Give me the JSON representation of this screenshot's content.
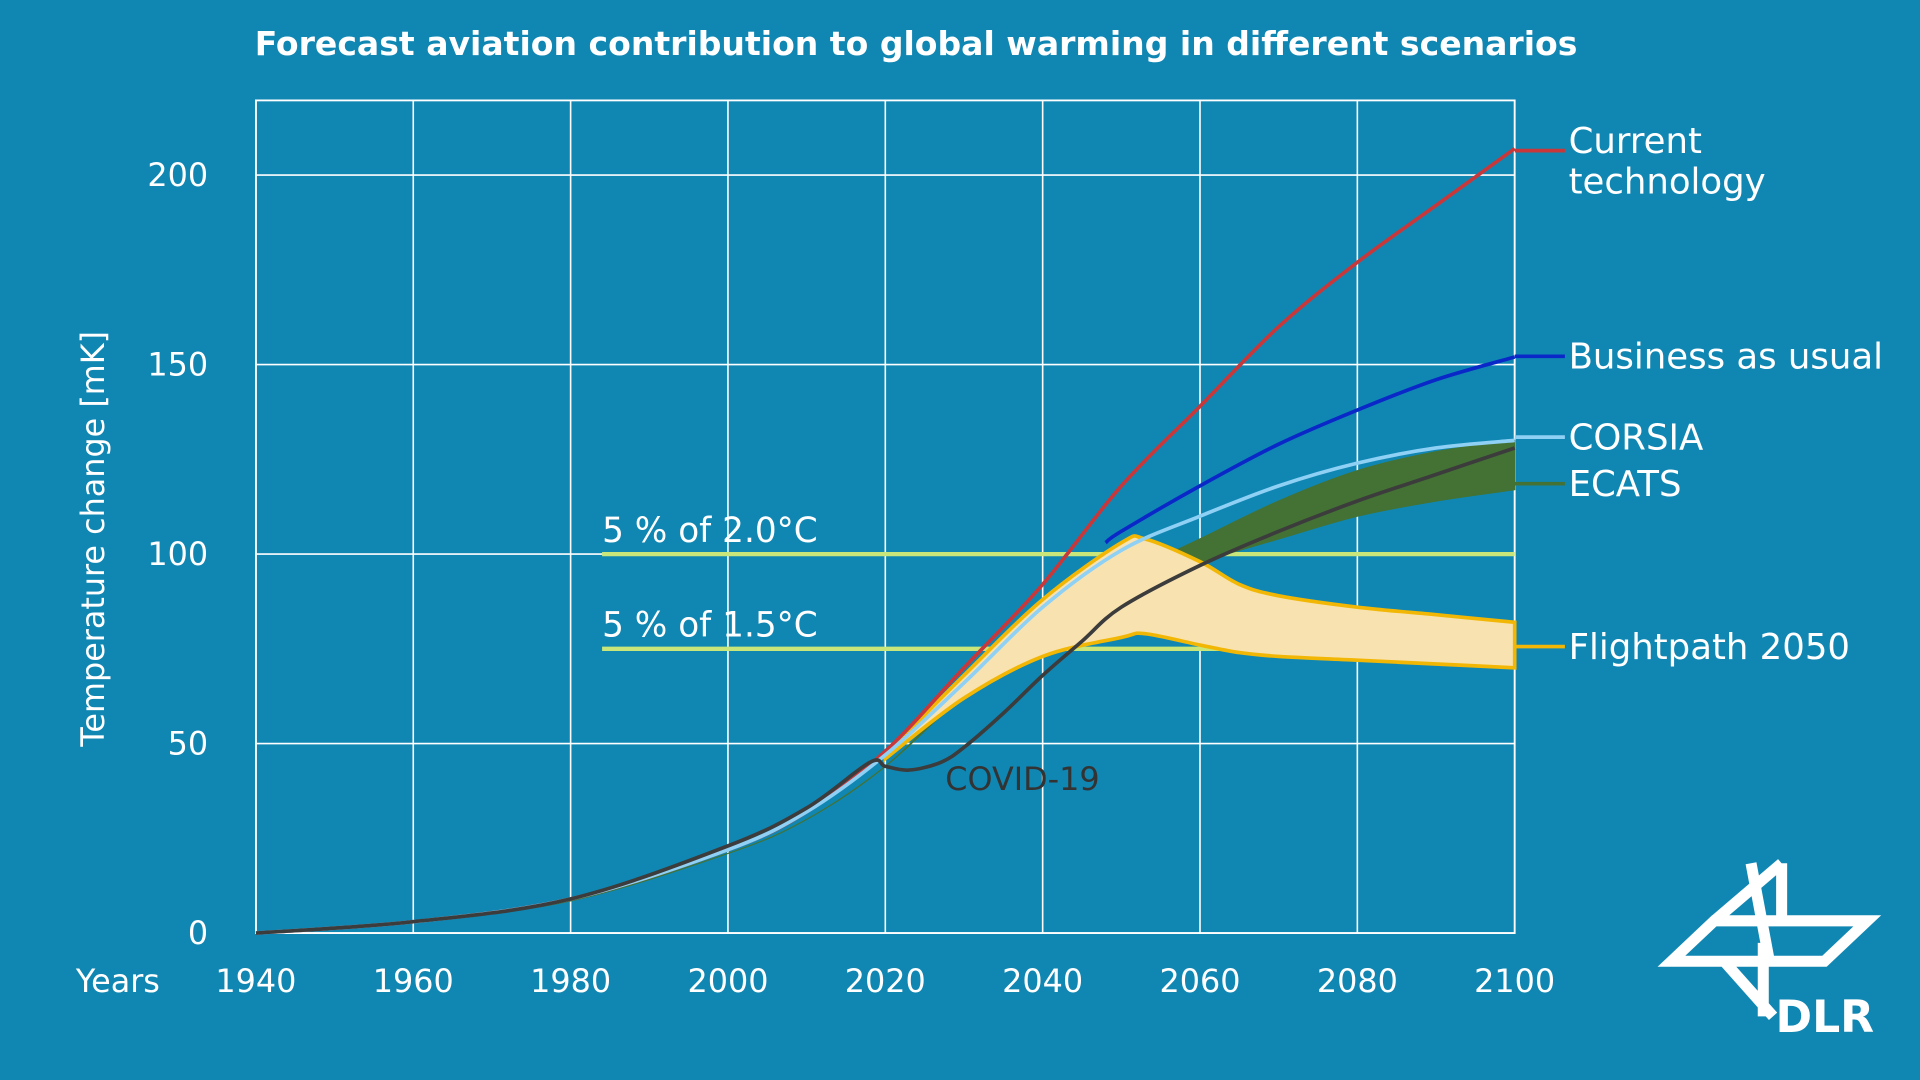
{
  "colors": {
    "background": "#1087b3",
    "grid": "#ffffff",
    "reference": "#c8e67a"
  },
  "chart_data": {
    "type": "line",
    "title": "Forecast aviation contribution to global warming in different scenarios",
    "xlabel": "Years",
    "ylabel": "Temperature change [mK]",
    "xlim": [
      1940,
      2100
    ],
    "ylim": [
      0,
      220
    ],
    "xticks": [
      1940,
      1960,
      1980,
      2000,
      2020,
      2040,
      2060,
      2080,
      2100
    ],
    "yticks": [
      0,
      50,
      100,
      150,
      200
    ],
    "grid": true,
    "legend_placement": "right",
    "reference_lines": [
      {
        "label": "5 % of 2.0°C",
        "y": 100,
        "x_start": 1984
      },
      {
        "label": "5 % of 1.5°C",
        "y": 75,
        "x_start": 1984
      }
    ],
    "annotation": "COVID-19",
    "series": [
      {
        "name": "Current technology",
        "color": "#c8383a",
        "kind": "line",
        "x": [
          1940,
          1960,
          1980,
          2000,
          2010,
          2020,
          2030,
          2040,
          2050,
          2060,
          2070,
          2080,
          2090,
          2100
        ],
        "y": [
          0,
          3,
          9,
          22,
          32,
          48,
          70,
          92,
          118,
          139,
          160,
          177,
          192,
          207
        ]
      },
      {
        "name": "Business as usual",
        "color": "#0a28c8",
        "kind": "line",
        "x": [
          2048,
          2050,
          2060,
          2070,
          2080,
          2090,
          2100
        ],
        "y": [
          103,
          106,
          118,
          129,
          138,
          146,
          152
        ]
      },
      {
        "name": "CORSIA",
        "color": "#8fd0f5",
        "kind": "line",
        "x": [
          1940,
          1960,
          1980,
          2000,
          2010,
          2020,
          2030,
          2040,
          2050,
          2060,
          2070,
          2080,
          2090,
          2100
        ],
        "y": [
          0,
          3,
          9,
          22,
          32,
          47,
          66,
          86,
          101,
          110,
          118,
          124,
          128,
          130
        ]
      },
      {
        "name": "ECATS",
        "color": "#437234",
        "kind": "band",
        "x": [
          1940,
          1960,
          1980,
          2000,
          2010,
          2020,
          2030,
          2040,
          2050,
          2060,
          2070,
          2080,
          2090,
          2100
        ],
        "upper": [
          0,
          3,
          8.5,
          21,
          30,
          44,
          64,
          82,
          94,
          104,
          114,
          122,
          127,
          130
        ],
        "lower": [
          0,
          3,
          8.5,
          21,
          30,
          44,
          63,
          80,
          92,
          98,
          104,
          110,
          114,
          117
        ]
      },
      {
        "name": "Flightpath 2050",
        "color": "#f2b705",
        "fill": "#f8e2b0",
        "kind": "band",
        "x": [
          2020,
          2030,
          2040,
          2050,
          2053,
          2060,
          2065,
          2070,
          2080,
          2090,
          2100
        ],
        "upper": [
          47,
          68,
          88,
          103,
          104,
          98,
          92,
          89,
          86,
          84,
          82
        ],
        "lower": [
          46,
          62,
          73,
          78,
          79,
          76,
          74,
          73,
          72,
          71,
          70
        ]
      },
      {
        "name": "COVID-19",
        "color": "#3c3c3c",
        "kind": "line",
        "x": [
          1940,
          1960,
          1980,
          2000,
          2010,
          2018,
          2020,
          2023,
          2027,
          2030,
          2035,
          2040,
          2045,
          2050,
          2060,
          2070,
          2080,
          2090,
          2100
        ],
        "y": [
          0,
          3,
          9,
          23,
          33,
          45,
          44,
          43,
          45,
          49,
          58,
          68,
          77,
          86,
          97,
          106,
          114,
          121,
          128
        ]
      }
    ]
  },
  "logo": {
    "text": "DLR"
  }
}
